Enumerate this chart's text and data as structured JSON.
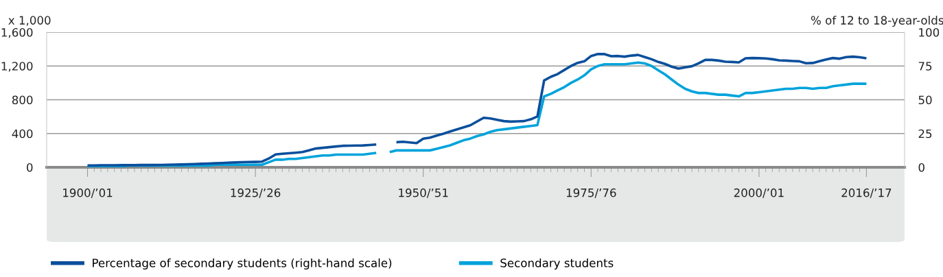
{
  "chart_data": {
    "type": "line",
    "ylabel": "x 1,000",
    "y2label": "% of 12 to 18-year-olds",
    "categories": [
      "1900/’01",
      null,
      null,
      null,
      null,
      null,
      null,
      null,
      null,
      null,
      null,
      null,
      null,
      null,
      null,
      null,
      null,
      null,
      null,
      null,
      null,
      null,
      null,
      null,
      null,
      "1925/’26",
      null,
      null,
      null,
      null,
      null,
      null,
      null,
      null,
      null,
      null,
      null,
      null,
      null,
      null,
      null,
      null,
      null,
      null,
      null,
      null,
      null,
      null,
      null,
      null,
      "1950/’51",
      null,
      null,
      null,
      null,
      null,
      null,
      null,
      null,
      null,
      null,
      null,
      null,
      null,
      null,
      null,
      null,
      null,
      null,
      null,
      null,
      null,
      null,
      null,
      null,
      "1975/’76",
      null,
      null,
      null,
      null,
      null,
      null,
      null,
      null,
      null,
      null,
      null,
      null,
      null,
      null,
      null,
      null,
      null,
      null,
      null,
      null,
      null,
      null,
      null,
      null,
      "2000/’01",
      null,
      null,
      null,
      null,
      null,
      null,
      null,
      null,
      null,
      null,
      null,
      null,
      null,
      null,
      null,
      "2016/’17"
    ],
    "ylim": [
      0,
      1600
    ],
    "yticks": [
      0,
      400,
      800,
      {
        "value": 1200,
        "label": "1,200"
      },
      {
        "value": 1600,
        "label": "1,600"
      }
    ],
    "y2lim": [
      0,
      100
    ],
    "y2ticks": [
      0,
      25,
      50,
      75,
      100
    ],
    "grid": "y",
    "legend": "bottom",
    "line_style": "solid",
    "marker": "none",
    "series": [
      {
        "name": "Percentage of secondary students (right-hand scale)",
        "color": "#0b4f9c",
        "axis": "y2",
        "values": [
          1.4,
          1.4,
          1.5,
          1.5,
          1.5,
          1.6,
          1.6,
          1.6,
          1.7,
          1.7,
          1.7,
          1.8,
          1.9,
          2.0,
          2.1,
          2.3,
          2.4,
          2.6,
          2.8,
          3.0,
          3.2,
          3.4,
          3.6,
          3.8,
          3.9,
          4.0,
          4.2,
          6.5,
          9.5,
          10,
          10.4,
          10.8,
          11.3,
          12.6,
          13.9,
          14.4,
          14.9,
          15.4,
          15.9,
          16,
          16.1,
          16.2,
          16.5,
          16.9,
          null,
          null,
          18.6,
          18.9,
          18.4,
          17.9,
          21.2,
          22,
          23.5,
          24.9,
          26.5,
          28,
          29.6,
          31.1,
          33.9,
          36.7,
          36.2,
          35.2,
          34.2,
          33.8,
          34,
          34.2,
          35.5,
          37.6,
          64.3,
          67,
          69,
          72,
          75,
          77.3,
          78.5,
          82.4,
          83.9,
          83.8,
          82.2,
          82.4,
          81.9,
          82.7,
          83.2,
          81.6,
          80,
          78,
          76.5,
          74.5,
          73.1,
          74,
          74.8,
          77,
          79.5,
          79.5,
          79,
          78.2,
          78,
          77.7,
          80.7,
          80.9,
          80.8,
          80.6,
          80,
          79.2,
          79,
          78.7,
          78.5,
          77,
          77.2,
          78.5,
          79.8,
          80.9,
          80.4,
          81.6,
          81.9,
          81.5,
          80.7
        ]
      },
      {
        "name": "Secondary students",
        "color": "#00a3dc",
        "values": [
          10,
          10,
          10,
          10,
          10,
          10,
          20,
          20,
          20,
          20,
          20,
          20,
          20,
          20,
          20,
          20,
          20,
          20,
          20,
          30,
          30,
          30,
          30,
          30,
          30,
          30,
          30,
          60,
          90,
          90,
          100,
          100,
          110,
          120,
          130,
          140,
          140,
          150,
          150,
          150,
          150,
          150,
          160,
          170,
          null,
          180,
          200,
          200,
          200,
          200,
          200,
          200,
          220,
          240,
          260,
          290,
          320,
          340,
          370,
          390,
          420,
          440,
          450,
          460,
          470,
          480,
          490,
          500,
          840,
          870,
          910,
          950,
          1000,
          1040,
          1090,
          1160,
          1200,
          1220,
          1220,
          1220,
          1220,
          1230,
          1240,
          1230,
          1200,
          1150,
          1100,
          1040,
          980,
          930,
          900,
          880,
          880,
          870,
          860,
          860,
          850,
          840,
          880,
          880,
          890,
          900,
          910,
          920,
          930,
          930,
          940,
          940,
          930,
          940,
          940,
          960,
          970,
          980,
          990,
          990,
          990
        ]
      }
    ]
  }
}
